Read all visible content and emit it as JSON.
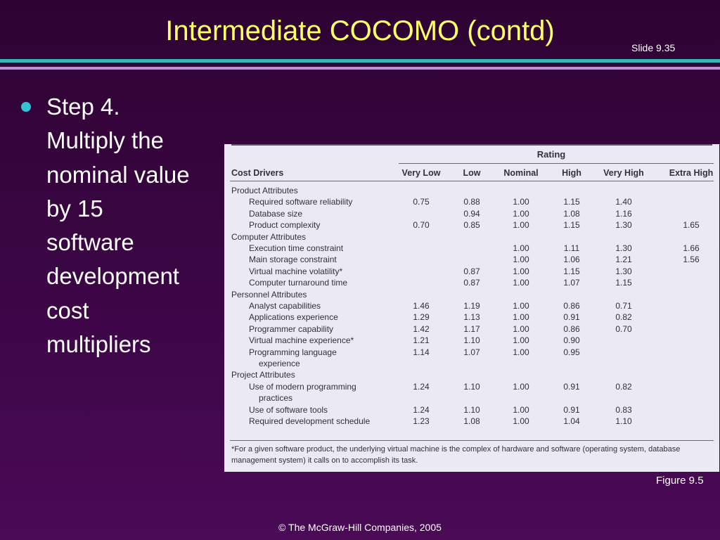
{
  "slide": {
    "title": "Intermediate COCOMO (contd)",
    "slide_number": "Slide 9.35",
    "bullet_text": "Step 4.\nMultiply the\nnominal value\nby 15\nsoftware\ndevelopment\ncost\nmultipliers",
    "figure_caption": "Figure 9.5",
    "footer": "© The McGraw-Hill Companies, 2005"
  },
  "table": {
    "rating_header": "Rating",
    "columns": [
      "Cost Drivers",
      "Very Low",
      "Low",
      "Nominal",
      "High",
      "Very High",
      "Extra High"
    ],
    "rows": [
      {
        "kind": "group",
        "label": "Product Attributes"
      },
      {
        "kind": "item",
        "label": "Required software reliability",
        "values": [
          "0.75",
          "0.88",
          "1.00",
          "1.15",
          "1.40",
          ""
        ]
      },
      {
        "kind": "item",
        "label": "Database size",
        "values": [
          "",
          "0.94",
          "1.00",
          "1.08",
          "1.16",
          ""
        ]
      },
      {
        "kind": "item",
        "label": "Product complexity",
        "values": [
          "0.70",
          "0.85",
          "1.00",
          "1.15",
          "1.30",
          "1.65"
        ]
      },
      {
        "kind": "group",
        "label": "Computer Attributes"
      },
      {
        "kind": "item",
        "label": "Execution time constraint",
        "values": [
          "",
          "",
          "1.00",
          "1.11",
          "1.30",
          "1.66"
        ]
      },
      {
        "kind": "item",
        "label": "Main storage constraint",
        "values": [
          "",
          "",
          "1.00",
          "1.06",
          "1.21",
          "1.56"
        ]
      },
      {
        "kind": "item",
        "label": "Virtual machine volatility*",
        "values": [
          "",
          "0.87",
          "1.00",
          "1.15",
          "1.30",
          ""
        ]
      },
      {
        "kind": "item",
        "label": "Computer turnaround time",
        "values": [
          "",
          "0.87",
          "1.00",
          "1.07",
          "1.15",
          ""
        ]
      },
      {
        "kind": "group",
        "label": "Personnel Attributes"
      },
      {
        "kind": "item",
        "label": "Analyst capabilities",
        "values": [
          "1.46",
          "1.19",
          "1.00",
          "0.86",
          "0.71",
          ""
        ]
      },
      {
        "kind": "item",
        "label": "Applications experience",
        "values": [
          "1.29",
          "1.13",
          "1.00",
          "0.91",
          "0.82",
          ""
        ]
      },
      {
        "kind": "item",
        "label": "Programmer capability",
        "values": [
          "1.42",
          "1.17",
          "1.00",
          "0.86",
          "0.70",
          ""
        ]
      },
      {
        "kind": "item",
        "label": "Virtual machine experience*",
        "values": [
          "1.21",
          "1.10",
          "1.00",
          "0.90",
          "",
          ""
        ]
      },
      {
        "kind": "item",
        "label": "Programming language",
        "values": [
          "1.14",
          "1.07",
          "1.00",
          "0.95",
          "",
          ""
        ]
      },
      {
        "kind": "cont",
        "label": "experience"
      },
      {
        "kind": "group",
        "label": "Project Attributes"
      },
      {
        "kind": "item",
        "label": "Use of modern programming",
        "values": [
          "1.24",
          "1.10",
          "1.00",
          "0.91",
          "0.82",
          ""
        ]
      },
      {
        "kind": "cont",
        "label": "practices"
      },
      {
        "kind": "item",
        "label": "Use of software tools",
        "values": [
          "1.24",
          "1.10",
          "1.00",
          "0.91",
          "0.83",
          ""
        ]
      },
      {
        "kind": "item",
        "label": "Required development schedule",
        "values": [
          "1.23",
          "1.08",
          "1.00",
          "1.04",
          "1.10",
          ""
        ]
      }
    ],
    "footnote": "*For a given software product, the underlying virtual machine is the complex of hardware and software (operating system, database management system) it calls on to accomplish its task."
  }
}
